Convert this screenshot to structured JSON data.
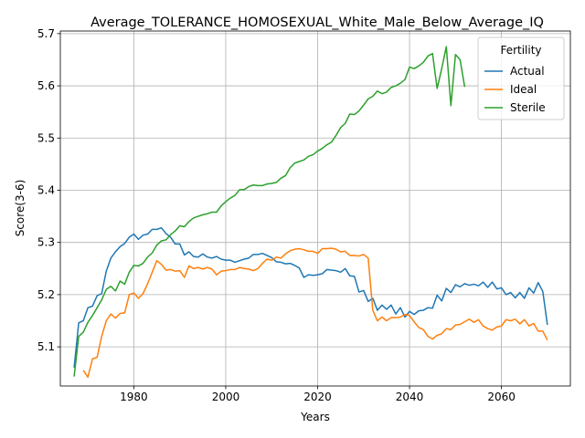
{
  "chart_data": {
    "type": "line",
    "title": "Average_TOLERANCE_HOMOSEXUAL_White_Male_Below_Average_IQ",
    "xlabel": "Years",
    "ylabel": "Score(3-6)",
    "xlim": [
      1964,
      2075
    ],
    "ylim": [
      5.025,
      5.705
    ],
    "xticks": [
      1980,
      2000,
      2020,
      2040,
      2060
    ],
    "yticks": [
      5.1,
      5.2,
      5.3,
      5.4,
      5.5,
      5.6,
      5.7
    ],
    "grid": true,
    "legend": {
      "title": "Fertility",
      "placement": "upper right"
    },
    "series": [
      {
        "name": "Actual",
        "color": "#1f77b4",
        "points": [
          [
            1967,
            5.06
          ],
          [
            1968,
            5.146
          ],
          [
            1969,
            5.15
          ],
          [
            1970,
            5.175
          ],
          [
            1971,
            5.178
          ],
          [
            1972,
            5.198
          ],
          [
            1973,
            5.202
          ],
          [
            1974,
            5.245
          ],
          [
            1975,
            5.27
          ],
          [
            1976,
            5.282
          ],
          [
            1977,
            5.292
          ],
          [
            1978,
            5.298
          ],
          [
            1979,
            5.31
          ],
          [
            1980,
            5.316
          ],
          [
            1981,
            5.306
          ],
          [
            1982,
            5.314
          ],
          [
            1983,
            5.316
          ],
          [
            1984,
            5.325
          ],
          [
            1985,
            5.325
          ],
          [
            1986,
            5.328
          ],
          [
            1987,
            5.317
          ],
          [
            1988,
            5.31
          ],
          [
            1989,
            5.297
          ],
          [
            1990,
            5.297
          ],
          [
            1991,
            5.276
          ],
          [
            1992,
            5.282
          ],
          [
            1993,
            5.273
          ],
          [
            1994,
            5.272
          ],
          [
            1995,
            5.278
          ],
          [
            1996,
            5.272
          ],
          [
            1997,
            5.27
          ],
          [
            1998,
            5.273
          ],
          [
            1999,
            5.268
          ],
          [
            2000,
            5.266
          ],
          [
            2001,
            5.266
          ],
          [
            2002,
            5.262
          ],
          [
            2003,
            5.265
          ],
          [
            2004,
            5.268
          ],
          [
            2005,
            5.27
          ],
          [
            2006,
            5.277
          ],
          [
            2007,
            5.277
          ],
          [
            2008,
            5.279
          ],
          [
            2009,
            5.275
          ],
          [
            2010,
            5.271
          ],
          [
            2011,
            5.263
          ],
          [
            2012,
            5.262
          ],
          [
            2013,
            5.259
          ],
          [
            2014,
            5.26
          ],
          [
            2015,
            5.256
          ],
          [
            2016,
            5.251
          ],
          [
            2017,
            5.233
          ],
          [
            2018,
            5.238
          ],
          [
            2019,
            5.237
          ],
          [
            2020,
            5.238
          ],
          [
            2021,
            5.24
          ],
          [
            2022,
            5.248
          ],
          [
            2023,
            5.247
          ],
          [
            2024,
            5.246
          ],
          [
            2025,
            5.243
          ],
          [
            2026,
            5.25
          ],
          [
            2027,
            5.236
          ],
          [
            2028,
            5.235
          ],
          [
            2029,
            5.205
          ],
          [
            2030,
            5.208
          ],
          [
            2031,
            5.187
          ],
          [
            2032,
            5.193
          ],
          [
            2033,
            5.17
          ],
          [
            2034,
            5.18
          ],
          [
            2035,
            5.172
          ],
          [
            2036,
            5.18
          ],
          [
            2037,
            5.163
          ],
          [
            2038,
            5.175
          ],
          [
            2039,
            5.157
          ],
          [
            2040,
            5.168
          ],
          [
            2041,
            5.162
          ],
          [
            2042,
            5.169
          ],
          [
            2043,
            5.17
          ],
          [
            2044,
            5.175
          ],
          [
            2045,
            5.174
          ],
          [
            2046,
            5.199
          ],
          [
            2047,
            5.188
          ],
          [
            2048,
            5.212
          ],
          [
            2049,
            5.204
          ],
          [
            2050,
            5.219
          ],
          [
            2051,
            5.215
          ],
          [
            2052,
            5.221
          ],
          [
            2053,
            5.218
          ],
          [
            2054,
            5.22
          ],
          [
            2055,
            5.217
          ],
          [
            2056,
            5.224
          ],
          [
            2057,
            5.214
          ],
          [
            2058,
            5.224
          ],
          [
            2059,
            5.211
          ],
          [
            2060,
            5.213
          ],
          [
            2061,
            5.2
          ],
          [
            2062,
            5.204
          ],
          [
            2063,
            5.194
          ],
          [
            2064,
            5.204
          ],
          [
            2065,
            5.193
          ],
          [
            2066,
            5.213
          ],
          [
            2067,
            5.203
          ],
          [
            2068,
            5.223
          ],
          [
            2069,
            5.206
          ],
          [
            2070,
            5.142
          ]
        ]
      },
      {
        "name": "Ideal",
        "color": "#ff7f0e",
        "points": [
          [
            1969,
            5.055
          ],
          [
            1970,
            5.042
          ],
          [
            1971,
            5.077
          ],
          [
            1972,
            5.08
          ],
          [
            1973,
            5.12
          ],
          [
            1974,
            5.15
          ],
          [
            1975,
            5.163
          ],
          [
            1976,
            5.155
          ],
          [
            1977,
            5.164
          ],
          [
            1978,
            5.165
          ],
          [
            1979,
            5.2
          ],
          [
            1980,
            5.203
          ],
          [
            1981,
            5.193
          ],
          [
            1982,
            5.202
          ],
          [
            1983,
            5.221
          ],
          [
            1984,
            5.243
          ],
          [
            1985,
            5.265
          ],
          [
            1986,
            5.258
          ],
          [
            1987,
            5.247
          ],
          [
            1988,
            5.248
          ],
          [
            1989,
            5.245
          ],
          [
            1990,
            5.246
          ],
          [
            1991,
            5.233
          ],
          [
            1992,
            5.255
          ],
          [
            1993,
            5.25
          ],
          [
            1994,
            5.252
          ],
          [
            1995,
            5.249
          ],
          [
            1996,
            5.252
          ],
          [
            1997,
            5.249
          ],
          [
            1998,
            5.238
          ],
          [
            1999,
            5.245
          ],
          [
            2000,
            5.246
          ],
          [
            2001,
            5.248
          ],
          [
            2002,
            5.248
          ],
          [
            2003,
            5.252
          ],
          [
            2004,
            5.25
          ],
          [
            2005,
            5.249
          ],
          [
            2006,
            5.246
          ],
          [
            2007,
            5.25
          ],
          [
            2008,
            5.26
          ],
          [
            2009,
            5.268
          ],
          [
            2010,
            5.266
          ],
          [
            2011,
            5.272
          ],
          [
            2012,
            5.27
          ],
          [
            2013,
            5.278
          ],
          [
            2014,
            5.284
          ],
          [
            2015,
            5.287
          ],
          [
            2016,
            5.288
          ],
          [
            2017,
            5.286
          ],
          [
            2018,
            5.283
          ],
          [
            2019,
            5.283
          ],
          [
            2020,
            5.279
          ],
          [
            2021,
            5.288
          ],
          [
            2022,
            5.288
          ],
          [
            2023,
            5.289
          ],
          [
            2024,
            5.287
          ],
          [
            2025,
            5.282
          ],
          [
            2026,
            5.283
          ],
          [
            2027,
            5.275
          ],
          [
            2028,
            5.275
          ],
          [
            2029,
            5.274
          ],
          [
            2030,
            5.277
          ],
          [
            2031,
            5.27
          ],
          [
            2032,
            5.17
          ],
          [
            2033,
            5.15
          ],
          [
            2034,
            5.157
          ],
          [
            2035,
            5.15
          ],
          [
            2036,
            5.156
          ],
          [
            2037,
            5.156
          ],
          [
            2038,
            5.157
          ],
          [
            2039,
            5.162
          ],
          [
            2040,
            5.16
          ],
          [
            2041,
            5.148
          ],
          [
            2042,
            5.137
          ],
          [
            2043,
            5.133
          ],
          [
            2044,
            5.12
          ],
          [
            2045,
            5.115
          ],
          [
            2046,
            5.122
          ],
          [
            2047,
            5.125
          ],
          [
            2048,
            5.135
          ],
          [
            2049,
            5.133
          ],
          [
            2050,
            5.142
          ],
          [
            2051,
            5.143
          ],
          [
            2052,
            5.148
          ],
          [
            2053,
            5.153
          ],
          [
            2054,
            5.147
          ],
          [
            2055,
            5.152
          ],
          [
            2056,
            5.14
          ],
          [
            2057,
            5.135
          ],
          [
            2058,
            5.132
          ],
          [
            2059,
            5.138
          ],
          [
            2060,
            5.14
          ],
          [
            2061,
            5.152
          ],
          [
            2062,
            5.15
          ],
          [
            2063,
            5.153
          ],
          [
            2064,
            5.144
          ],
          [
            2065,
            5.152
          ],
          [
            2066,
            5.14
          ],
          [
            2067,
            5.145
          ],
          [
            2068,
            5.13
          ],
          [
            2069,
            5.13
          ],
          [
            2070,
            5.113
          ]
        ]
      },
      {
        "name": "Sterile",
        "color": "#2ca02c",
        "points": [
          [
            1967,
            5.043
          ],
          [
            1968,
            5.12
          ],
          [
            1969,
            5.128
          ],
          [
            1970,
            5.147
          ],
          [
            1971,
            5.16
          ],
          [
            1972,
            5.175
          ],
          [
            1973,
            5.19
          ],
          [
            1974,
            5.21
          ],
          [
            1975,
            5.216
          ],
          [
            1976,
            5.207
          ],
          [
            1977,
            5.226
          ],
          [
            1978,
            5.22
          ],
          [
            1979,
            5.243
          ],
          [
            1980,
            5.256
          ],
          [
            1981,
            5.255
          ],
          [
            1982,
            5.26
          ],
          [
            1983,
            5.272
          ],
          [
            1984,
            5.28
          ],
          [
            1985,
            5.295
          ],
          [
            1986,
            5.303
          ],
          [
            1987,
            5.305
          ],
          [
            1988,
            5.315
          ],
          [
            1989,
            5.322
          ],
          [
            1990,
            5.332
          ],
          [
            1991,
            5.33
          ],
          [
            1992,
            5.34
          ],
          [
            1993,
            5.347
          ],
          [
            1994,
            5.35
          ],
          [
            1995,
            5.353
          ],
          [
            1996,
            5.355
          ],
          [
            1997,
            5.358
          ],
          [
            1998,
            5.358
          ],
          [
            1999,
            5.37
          ],
          [
            2000,
            5.378
          ],
          [
            2001,
            5.385
          ],
          [
            2002,
            5.39
          ],
          [
            2003,
            5.401
          ],
          [
            2004,
            5.401
          ],
          [
            2005,
            5.407
          ],
          [
            2006,
            5.41
          ],
          [
            2007,
            5.409
          ],
          [
            2008,
            5.409
          ],
          [
            2009,
            5.412
          ],
          [
            2010,
            5.413
          ],
          [
            2011,
            5.415
          ],
          [
            2012,
            5.423
          ],
          [
            2013,
            5.428
          ],
          [
            2014,
            5.443
          ],
          [
            2015,
            5.452
          ],
          [
            2016,
            5.455
          ],
          [
            2017,
            5.458
          ],
          [
            2018,
            5.465
          ],
          [
            2019,
            5.468
          ],
          [
            2020,
            5.475
          ],
          [
            2021,
            5.48
          ],
          [
            2022,
            5.487
          ],
          [
            2023,
            5.492
          ],
          [
            2024,
            5.505
          ],
          [
            2025,
            5.52
          ],
          [
            2026,
            5.528
          ],
          [
            2027,
            5.546
          ],
          [
            2028,
            5.545
          ],
          [
            2029,
            5.552
          ],
          [
            2030,
            5.563
          ],
          [
            2031,
            5.575
          ],
          [
            2032,
            5.58
          ],
          [
            2033,
            5.59
          ],
          [
            2034,
            5.585
          ],
          [
            2035,
            5.588
          ],
          [
            2036,
            5.597
          ],
          [
            2037,
            5.6
          ],
          [
            2038,
            5.605
          ],
          [
            2039,
            5.612
          ],
          [
            2040,
            5.636
          ],
          [
            2041,
            5.633
          ],
          [
            2042,
            5.638
          ],
          [
            2043,
            5.645
          ],
          [
            2044,
            5.657
          ],
          [
            2045,
            5.662
          ],
          [
            2046,
            5.595
          ],
          [
            2047,
            5.633
          ],
          [
            2048,
            5.675
          ],
          [
            2049,
            5.562
          ],
          [
            2050,
            5.66
          ],
          [
            2051,
            5.65
          ],
          [
            2052,
            5.598
          ]
        ]
      }
    ]
  }
}
